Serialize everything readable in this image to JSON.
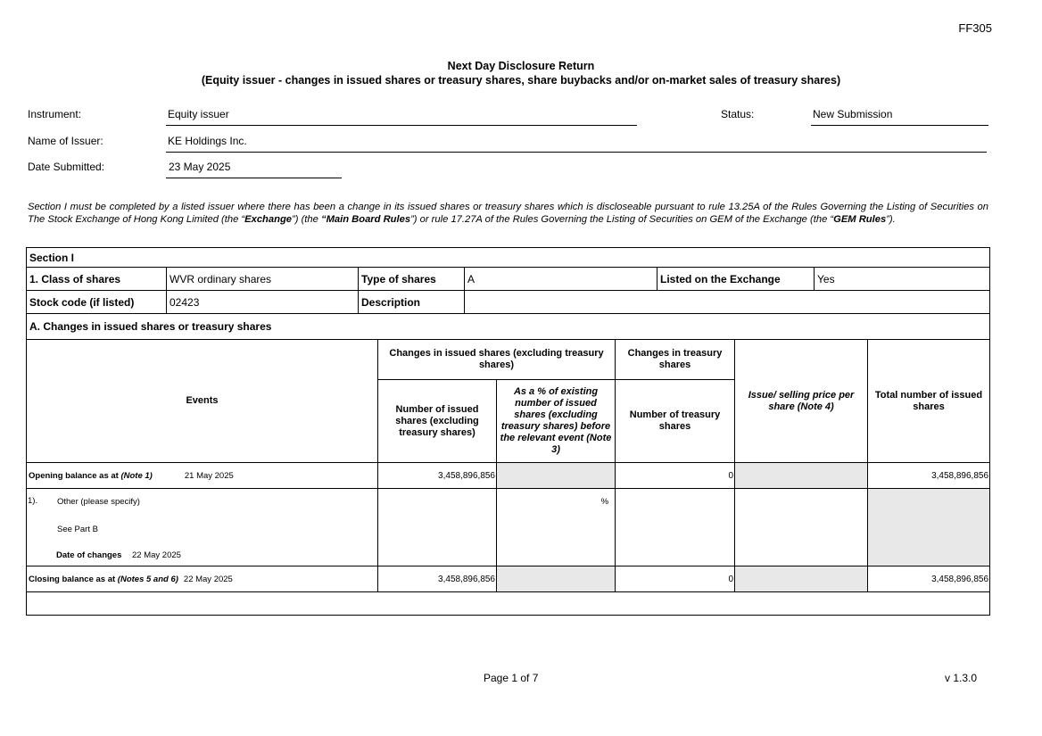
{
  "form_code": "FF305",
  "title": "Next Day Disclosure Return",
  "subtitle": "(Equity issuer - changes in issued shares or treasury shares, share buybacks and/or on-market sales of treasury shares)",
  "header": {
    "instrument_label": "Instrument:",
    "instrument": "Equity issuer",
    "status_label": "Status:",
    "status": "New Submission",
    "issuer_label": "Name of Issuer:",
    "issuer": "KE Holdings Inc.",
    "date_label": "Date Submitted:",
    "date": "23 May 2025"
  },
  "intro": {
    "p1": "Section I must be completed by a listed issuer where there has been a change in its issued shares or treasury shares which is discloseable pursuant to rule 13.25A of the Rules Governing the Listing of Securities on The Stock Exchange of Hong Kong Limited (the “",
    "exchange": "Exchange",
    "p2": "”) (the ",
    "mbr": "“Main Board Rules",
    "p3": "”) or rule 17.27A of the Rules Governing the Listing of Securities on GEM of the Exchange (the “",
    "gem": "GEM Rules",
    "p4": "”)."
  },
  "section": {
    "title": "Section I",
    "class_label": "1. Class of shares",
    "class": "WVR ordinary shares",
    "type_label": "Type of shares",
    "type": "A",
    "listed_label": "Listed on the Exchange",
    "listed": "Yes",
    "code_label": "Stock code (if listed)",
    "code": "02423",
    "desc_label": "Description",
    "desc": ""
  },
  "changes": {
    "heading": "A. Changes in issued shares or treasury shares",
    "headers": {
      "events": "Events",
      "issued_group": "Changes in issued shares (excluding treasury shares)",
      "treasury_group": "Changes in treasury shares",
      "num_issued": "Number of issued shares (excluding treasury shares)",
      "pct": "As a % of existing number of issued shares (excluding treasury shares) before the relevant event (Note 3)",
      "num_treasury": "Number of treasury shares",
      "price": "Issue/ selling price per share (Note 4)",
      "total": "Total number of issued shares"
    },
    "opening": {
      "label": "Opening balance as at ",
      "note": "(Note 1)",
      "date": "21 May 2025",
      "issued": "3,458,896,856",
      "treasury": "0",
      "total": "3,458,896,856"
    },
    "event": {
      "index": "1).",
      "type": "Other (please specify)",
      "detail": "See Part B",
      "date_label": "Date of changes",
      "date": "22 May 2025",
      "pct_unit": "%"
    },
    "closing": {
      "label": "Closing balance as at ",
      "note": "(Notes 5 and 6)",
      "date": "22 May 2025",
      "issued": "3,458,896,856",
      "treasury": "0",
      "total": "3,458,896,856"
    }
  },
  "footer": {
    "page": "Page 1 of 7",
    "version": "v 1.3.0"
  }
}
